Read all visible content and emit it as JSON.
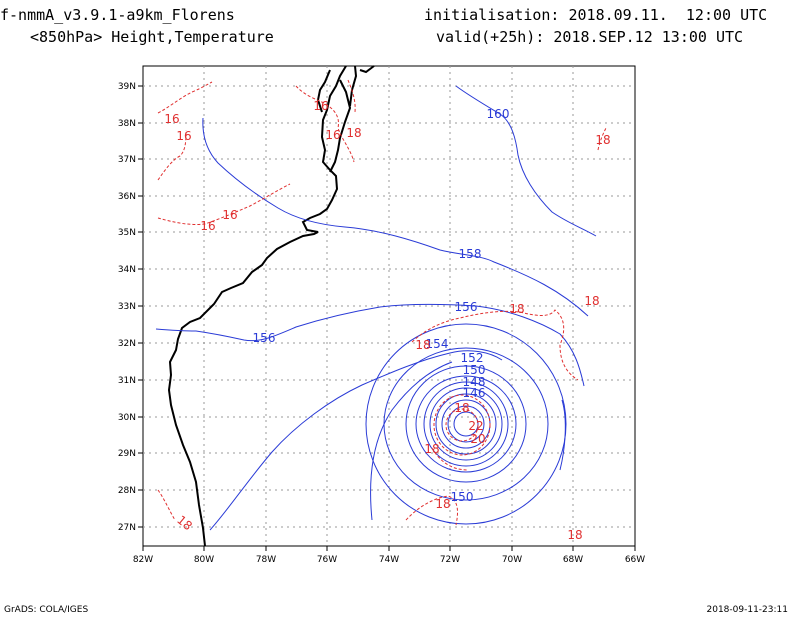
{
  "header": {
    "model": "f-nmmA_v3.9.1-a9km_Florens",
    "field": "<850hPa> Height,Temperature",
    "init": "initialisation: 2018.09.11.  12:00 UTC",
    "valid": "valid(+25h): 2018.SEP.12 13:00 UTC"
  },
  "footer": {
    "left": "GrADS: COLA/IGES",
    "right": "2018-09-11-23:11"
  },
  "colors": {
    "height_contour": "#2a3bd6",
    "temperature_contour": "#e03030",
    "coastline": "#000000",
    "grid": "#9a9a9a"
  },
  "axes": {
    "lon_labels": [
      "82W",
      "80W",
      "78W",
      "76W",
      "74W",
      "72W",
      "70W",
      "68W",
      "66W"
    ],
    "lat_labels": [
      "27N",
      "28N",
      "29N",
      "30N",
      "31N",
      "32N",
      "33N",
      "34N",
      "35N",
      "36N",
      "37N",
      "38N",
      "39N"
    ]
  },
  "height_labels": [
    "160",
    "158",
    "156",
    "156",
    "154",
    "152",
    "150",
    "148",
    "146",
    "150"
  ],
  "temp_labels": [
    "16",
    "16",
    "16",
    "16",
    "16",
    "16",
    "18",
    "18",
    "18",
    "18",
    "18",
    "18",
    "18",
    "18",
    "22",
    "20",
    "18"
  ]
}
